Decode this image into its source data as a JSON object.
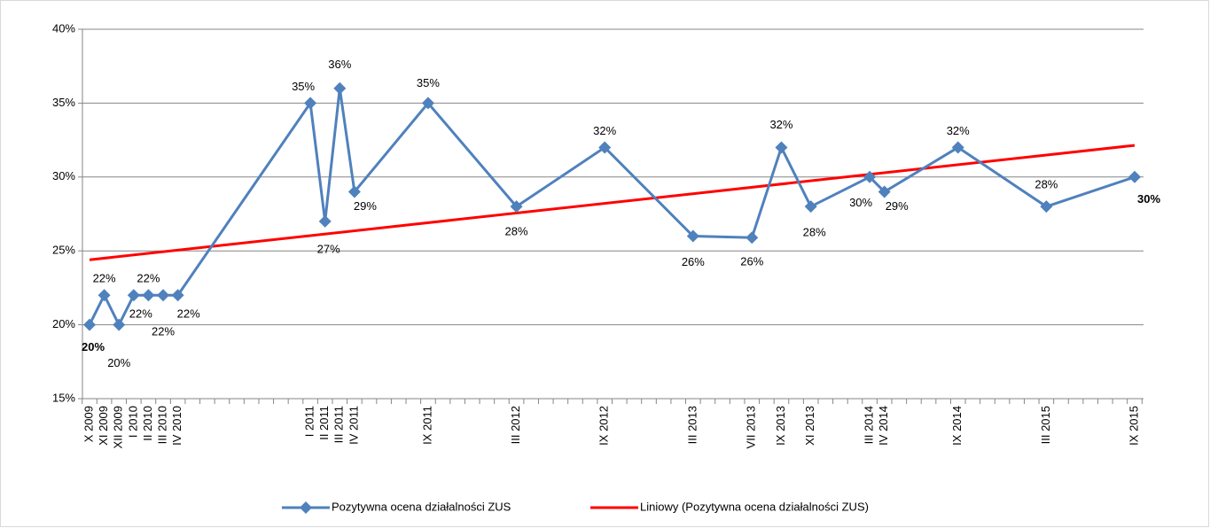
{
  "chart_data": {
    "type": "line",
    "x": [
      "X 2009",
      "XI 2009",
      "XII 2009",
      "I 2010",
      "II 2010",
      "III 2010",
      "IV 2010",
      "I  2011",
      "II 2011",
      "III 2011",
      "IV 2011",
      "IX 2011",
      "III 2012",
      "IX 2012",
      "III 2013",
      "VII 2013",
      "IX 2013",
      "XI 2013",
      "III 2014",
      "IV 2014",
      "IX 2014",
      "III 2015",
      "IX 2015"
    ],
    "series": [
      {
        "name": "Pozytywna ocena działalności ZUS",
        "color": "#4f81bd",
        "values": [
          20,
          22,
          20,
          22,
          22,
          22,
          22,
          35,
          27,
          36,
          29,
          35,
          28,
          32,
          26,
          25.9,
          32,
          28,
          30,
          29,
          32,
          28,
          30
        ],
        "value_labels": [
          "20%",
          "22%",
          "20%",
          "22%",
          "22%",
          "22%",
          "22%",
          "35%",
          "27%",
          "36%",
          "29%",
          "35%",
          "28%",
          "32%",
          "26%",
          "26%",
          "32%",
          "28%",
          "30%",
          "29%",
          "32%",
          "28%",
          "30%"
        ]
      },
      {
        "name": "Liniowy (Pozytywna ocena działalności ZUS)",
        "color": "#ff0000",
        "trendline": "linear"
      }
    ],
    "ylim": [
      15,
      40
    ],
    "yticks": [
      {
        "value": 15,
        "label": "15%"
      },
      {
        "value": 20,
        "label": "20%"
      },
      {
        "value": 25,
        "label": "25%"
      },
      {
        "value": 30,
        "label": "30%"
      },
      {
        "value": 35,
        "label": "35%"
      },
      {
        "value": 40,
        "label": "40%"
      }
    ],
    "grid": true,
    "legend": "bottom"
  }
}
